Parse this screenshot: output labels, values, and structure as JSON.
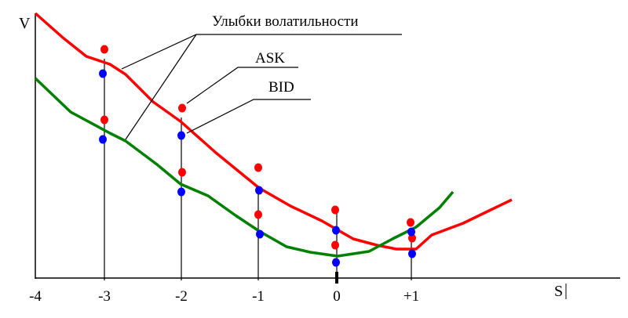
{
  "labels": {
    "y_axis": "V",
    "x_axis": "S",
    "smiles": "Улыбки волатильности",
    "ask": "ASK",
    "bid": "BID"
  },
  "x_ticks": [
    "-4",
    "-3",
    "-2",
    "-1",
    "0",
    "+1"
  ],
  "colors": {
    "ask": "#ff0000",
    "bid": "#0000ff",
    "ask_curve": "#ff0000",
    "bid_curve": "#008000",
    "axes": "#000000"
  }
}
